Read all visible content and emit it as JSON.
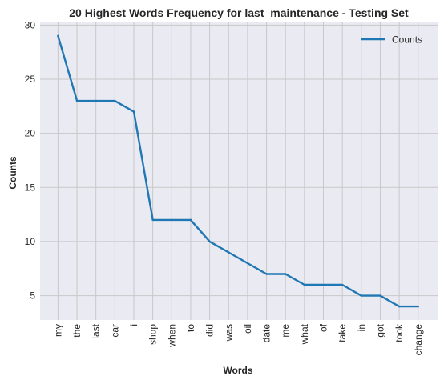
{
  "chart_data": {
    "type": "line",
    "title": "20 Highest Words Frequency for last_maintenance - Testing Set",
    "xlabel": "Words",
    "ylabel": "Counts",
    "categories": [
      "my",
      "the",
      "last",
      "car",
      "i",
      "shop",
      "when",
      "to",
      "did",
      "was",
      "oil",
      "date",
      "me",
      "what",
      "of",
      "take",
      "in",
      "got",
      "took",
      "change"
    ],
    "series": [
      {
        "name": "Counts",
        "values": [
          29,
          23,
          23,
          23,
          22,
          12,
          12,
          12,
          10,
          9,
          8,
          7,
          7,
          6,
          6,
          6,
          5,
          5,
          4,
          4
        ],
        "color": "#1f77b4"
      }
    ],
    "ylim": [
      2.75,
      30.25
    ],
    "yticks": [
      5,
      10,
      15,
      20,
      25,
      30
    ],
    "grid": true,
    "legend": "top-right",
    "background": "#eaeaf2",
    "grid_color": "#c8c8c8"
  }
}
